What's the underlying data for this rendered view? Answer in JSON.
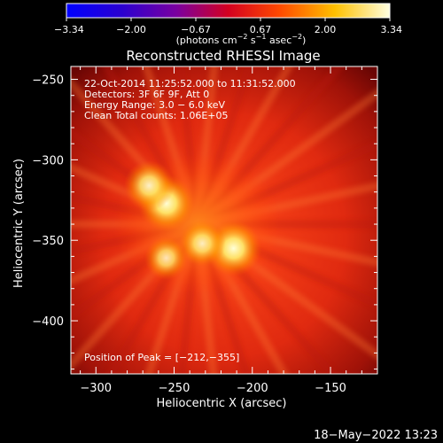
{
  "colorbar": {
    "ticks": [
      "−3.34",
      "−2.00",
      "−0.67",
      "0.67",
      "2.00",
      "3.34"
    ],
    "units_prefix": "(photons cm",
    "units_sup1": "−2",
    "units_mid": " s",
    "units_sup2": "−1",
    "units_mid2": " asec",
    "units_sup3": "−2",
    "units_suffix": ")"
  },
  "chart_data": {
    "type": "heatmap",
    "title": "Reconstructed RHESSI Image",
    "xlabel": "Heliocentric X (arcsec)",
    "ylabel": "Heliocentric Y (arcsec)",
    "xlim": [
      -316,
      -120
    ],
    "ylim": [
      -433,
      -242
    ],
    "xticks": [
      -300,
      -250,
      -200,
      -150
    ],
    "yticks": [
      -250,
      -300,
      -350,
      -400
    ],
    "xtick_labels": [
      "−300",
      "−250",
      "−200",
      "−150"
    ],
    "ytick_labels": [
      "−250",
      "−300",
      "−350",
      "−400"
    ],
    "info": [
      "22-Oct-2014 11:25:52.000 to 11:31:52.000",
      "Detectors: 3F 6F 9F, Att 0",
      "Energy Range: 3.0 − 6.0 keV",
      "Clean    Total counts: 1.06E+05"
    ],
    "peak_label": "Position of Peak = [−212,−355]",
    "sources": [
      {
        "x": -255,
        "y": -327,
        "intensity": 1.0
      },
      {
        "x": -266,
        "y": -316,
        "intensity": 0.8
      },
      {
        "x": -212,
        "y": -355,
        "intensity": 1.0
      },
      {
        "x": -232,
        "y": -352,
        "intensity": 0.7
      },
      {
        "x": -255,
        "y": -361,
        "intensity": 0.6
      }
    ],
    "colorbar_range": [
      -3.34,
      3.34
    ]
  },
  "footer": {
    "timestamp": "18−May−2022 13:23"
  }
}
